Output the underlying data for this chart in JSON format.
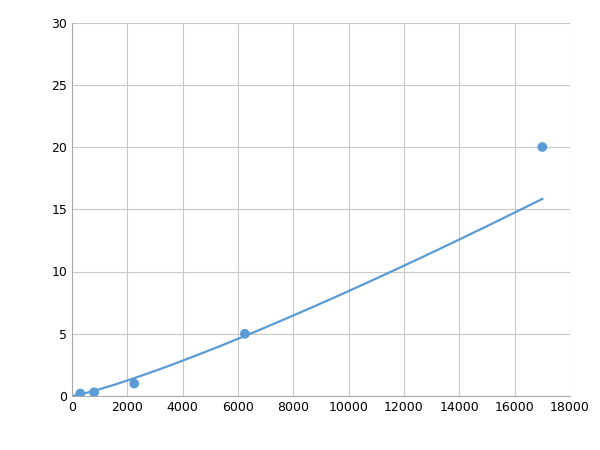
{
  "x_points": [
    300,
    800,
    2250,
    6250,
    17000
  ],
  "y_points": [
    0.2,
    0.3,
    1.0,
    5.0,
    20.0
  ],
  "line_color": "#5b9bd5",
  "marker_color": "#5b9bd5",
  "marker_size": 7,
  "line_width": 1.6,
  "xlim": [
    0,
    18000
  ],
  "ylim": [
    0,
    30
  ],
  "xticks": [
    0,
    2000,
    4000,
    6000,
    8000,
    10000,
    12000,
    14000,
    16000,
    18000
  ],
  "yticks": [
    0,
    5,
    10,
    15,
    20,
    25,
    30
  ],
  "grid_color": "#c8c8c8",
  "background_color": "#ffffff",
  "tick_fontsize": 9,
  "spine_color": "#aaaaaa"
}
